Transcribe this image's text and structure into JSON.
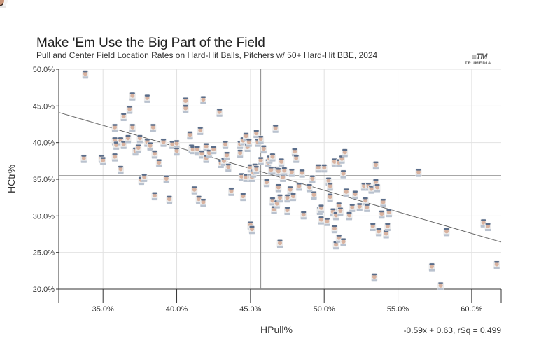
{
  "chart_data": {
    "type": "scatter",
    "title": "Make 'Em Use the Big Part of the Field",
    "subtitle": "Pull and Center Field Location Rates on Hard-Hit Balls, Pitchers w/ 50+ Hard-Hit BBE, 2024",
    "xlabel": "HPull%",
    "ylabel": "HCtr%",
    "xlim": [
      0.32,
      0.62
    ],
    "ylim": [
      0.2,
      0.5
    ],
    "x_ticks": [
      0.35,
      0.4,
      0.45,
      0.5,
      0.55,
      0.6
    ],
    "x_tick_labels": [
      "35.0%",
      "40.0%",
      "45.0%",
      "50.0%",
      "55.0%",
      "60.0%"
    ],
    "y_ticks": [
      0.2,
      0.25,
      0.3,
      0.35,
      0.4,
      0.45,
      0.5
    ],
    "y_tick_labels": [
      "20.0%",
      "25.0%",
      "30.0%",
      "35.0%",
      "40.0%",
      "45.0%",
      "50.0%"
    ],
    "mean_lines": {
      "x": 0.457,
      "y": 0.355
    },
    "regression": {
      "slope": -0.59,
      "intercept": 0.63,
      "label": "-0.59x + 0.63, rSq = 0.499"
    },
    "highlighted": [
      {
        "x": 0.38,
        "y": 0.425
      },
      {
        "x": 0.409,
        "y": 0.363
      },
      {
        "x": 0.482,
        "y": 0.392
      },
      {
        "x": 0.537,
        "y": 0.324
      }
    ],
    "points": [
      [
        0.338,
        0.493
      ],
      [
        0.337,
        0.378
      ],
      [
        0.349,
        0.378
      ],
      [
        0.35,
        0.375
      ],
      [
        0.358,
        0.42
      ],
      [
        0.358,
        0.402
      ],
      [
        0.358,
        0.38
      ],
      [
        0.359,
        0.396
      ],
      [
        0.362,
        0.402
      ],
      [
        0.362,
        0.363
      ],
      [
        0.364,
        0.435
      ],
      [
        0.364,
        0.397
      ],
      [
        0.367,
        0.405
      ],
      [
        0.368,
        0.445
      ],
      [
        0.37,
        0.463
      ],
      [
        0.37,
        0.42
      ],
      [
        0.372,
        0.388
      ],
      [
        0.374,
        0.392
      ],
      [
        0.375,
        0.405
      ],
      [
        0.376,
        0.348
      ],
      [
        0.378,
        0.352
      ],
      [
        0.38,
        0.46
      ],
      [
        0.38,
        0.4
      ],
      [
        0.382,
        0.395
      ],
      [
        0.384,
        0.42
      ],
      [
        0.385,
        0.327
      ],
      [
        0.385,
        0.384
      ],
      [
        0.388,
        0.372
      ],
      [
        0.391,
        0.4
      ],
      [
        0.393,
        0.35
      ],
      [
        0.395,
        0.322
      ],
      [
        0.397,
        0.397
      ],
      [
        0.4,
        0.398
      ],
      [
        0.4,
        0.388
      ],
      [
        0.406,
        0.456
      ],
      [
        0.406,
        0.446
      ],
      [
        0.409,
        0.41
      ],
      [
        0.41,
        0.392
      ],
      [
        0.411,
        0.39
      ],
      [
        0.412,
        0.335
      ],
      [
        0.414,
        0.388
      ],
      [
        0.414,
        0.39
      ],
      [
        0.415,
        0.322
      ],
      [
        0.416,
        0.416
      ],
      [
        0.417,
        0.384
      ],
      [
        0.418,
        0.458
      ],
      [
        0.418,
        0.318
      ],
      [
        0.42,
        0.394
      ],
      [
        0.42,
        0.378
      ],
      [
        0.422,
        0.385
      ],
      [
        0.425,
        0.39
      ],
      [
        0.429,
        0.441
      ],
      [
        0.43,
        0.371
      ],
      [
        0.432,
        0.374
      ],
      [
        0.433,
        0.397
      ],
      [
        0.434,
        0.382
      ],
      [
        0.435,
        0.366
      ],
      [
        0.437,
        0.333
      ],
      [
        0.443,
        0.397
      ],
      [
        0.443,
        0.385
      ],
      [
        0.444,
        0.353
      ],
      [
        0.445,
        0.402
      ],
      [
        0.445,
        0.326
      ],
      [
        0.447,
        0.352
      ],
      [
        0.447,
        0.408
      ],
      [
        0.448,
        0.393
      ],
      [
        0.449,
        0.4
      ],
      [
        0.45,
        0.365
      ],
      [
        0.45,
        0.352
      ],
      [
        0.45,
        0.287
      ],
      [
        0.451,
        0.352
      ],
      [
        0.451,
        0.281
      ],
      [
        0.452,
        0.358
      ],
      [
        0.453,
        0.366
      ],
      [
        0.454,
        0.412
      ],
      [
        0.454,
        0.363
      ],
      [
        0.455,
        0.4
      ],
      [
        0.457,
        0.375
      ],
      [
        0.457,
        0.404
      ],
      [
        0.459,
        0.391
      ],
      [
        0.461,
        0.345
      ],
      [
        0.462,
        0.372
      ],
      [
        0.463,
        0.377
      ],
      [
        0.464,
        0.362
      ],
      [
        0.465,
        0.38
      ],
      [
        0.465,
        0.32
      ],
      [
        0.466,
        0.308
      ],
      [
        0.467,
        0.419
      ],
      [
        0.468,
        0.362
      ],
      [
        0.468,
        0.316
      ],
      [
        0.469,
        0.36
      ],
      [
        0.469,
        0.338
      ],
      [
        0.47,
        0.262
      ],
      [
        0.47,
        0.324
      ],
      [
        0.471,
        0.373
      ],
      [
        0.472,
        0.352
      ],
      [
        0.473,
        0.361
      ],
      [
        0.475,
        0.307
      ],
      [
        0.475,
        0.324
      ],
      [
        0.477,
        0.335
      ],
      [
        0.478,
        0.359
      ],
      [
        0.479,
        0.326
      ],
      [
        0.48,
        0.387
      ],
      [
        0.481,
        0.378
      ],
      [
        0.483,
        0.34
      ],
      [
        0.485,
        0.358
      ],
      [
        0.486,
        0.301
      ],
      [
        0.49,
        0.338
      ],
      [
        0.492,
        0.35
      ],
      [
        0.493,
        0.328
      ],
      [
        0.496,
        0.365
      ],
      [
        0.497,
        0.307
      ],
      [
        0.498,
        0.31
      ],
      [
        0.498,
        0.294
      ],
      [
        0.5,
        0.365
      ],
      [
        0.502,
        0.292
      ],
      [
        0.503,
        0.347
      ],
      [
        0.504,
        0.34
      ],
      [
        0.504,
        0.325
      ],
      [
        0.506,
        0.305
      ],
      [
        0.507,
        0.373
      ],
      [
        0.507,
        0.282
      ],
      [
        0.508,
        0.3
      ],
      [
        0.508,
        0.26
      ],
      [
        0.51,
        0.372
      ],
      [
        0.51,
        0.313
      ],
      [
        0.51,
        0.269
      ],
      [
        0.511,
        0.306
      ],
      [
        0.512,
        0.377
      ],
      [
        0.513,
        0.264
      ],
      [
        0.513,
        0.357
      ],
      [
        0.514,
        0.386
      ],
      [
        0.515,
        0.332
      ],
      [
        0.517,
        0.3
      ],
      [
        0.519,
        0.311
      ],
      [
        0.521,
        0.329
      ],
      [
        0.524,
        0.312
      ],
      [
        0.527,
        0.34
      ],
      [
        0.528,
        0.32
      ],
      [
        0.529,
        0.311
      ],
      [
        0.53,
        0.34
      ],
      [
        0.532,
        0.336
      ],
      [
        0.533,
        0.285
      ],
      [
        0.534,
        0.216
      ],
      [
        0.535,
        0.369
      ],
      [
        0.535,
        0.345
      ],
      [
        0.536,
        0.338
      ],
      [
        0.537,
        0.278
      ],
      [
        0.539,
        0.302
      ],
      [
        0.54,
        0.318
      ],
      [
        0.542,
        0.275
      ],
      [
        0.543,
        0.285
      ],
      [
        0.544,
        0.304
      ],
      [
        0.564,
        0.359
      ],
      [
        0.573,
        0.23
      ],
      [
        0.579,
        0.204
      ],
      [
        0.583,
        0.278
      ],
      [
        0.608,
        0.29
      ],
      [
        0.611,
        0.285
      ],
      [
        0.617,
        0.233
      ]
    ]
  },
  "logo": {
    "mark": "≡TM",
    "text": "TRUMEDIA"
  }
}
